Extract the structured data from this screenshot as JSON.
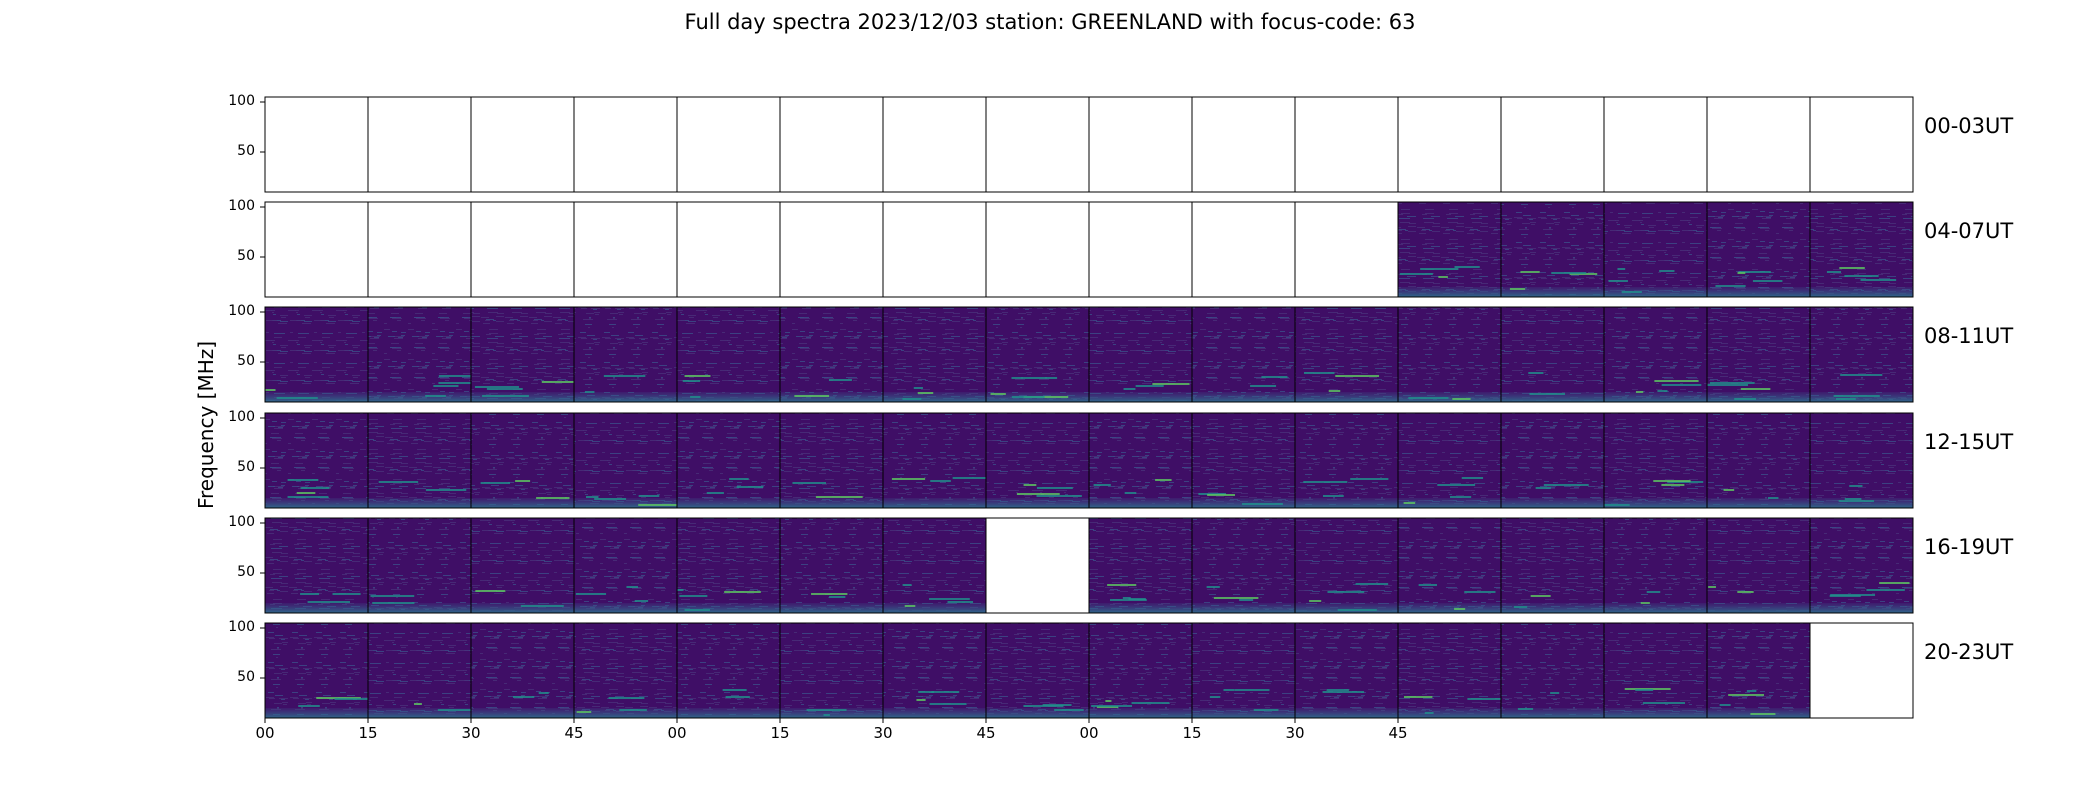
{
  "chart_data": {
    "type": "heatmap",
    "title": "Full day spectra 2023/12/03 station: GREENLAND with focus-code: 63",
    "ylabel": "Frequency [MHz]",
    "y_ticks": [
      "100",
      "50"
    ],
    "x_ticks": [
      "00",
      "15",
      "30",
      "45",
      "00",
      "15",
      "30",
      "45",
      "00",
      "15",
      "30",
      "45"
    ],
    "rows": [
      {
        "label": "00-03UT",
        "panels": [
          "empty",
          "empty",
          "empty",
          "empty",
          "empty",
          "empty",
          "empty",
          "empty",
          "empty",
          "empty",
          "empty",
          "empty",
          "empty",
          "empty",
          "empty",
          "empty"
        ]
      },
      {
        "label": "04-07UT",
        "panels": [
          "empty",
          "empty",
          "empty",
          "empty",
          "empty",
          "empty",
          "empty",
          "empty",
          "empty",
          "empty",
          "empty",
          "data",
          "data",
          "data",
          "data",
          "data"
        ]
      },
      {
        "label": "08-11UT",
        "panels": [
          "data",
          "data",
          "data",
          "data",
          "data",
          "data",
          "data",
          "data",
          "data",
          "data",
          "data",
          "data",
          "data",
          "data",
          "data",
          "data"
        ]
      },
      {
        "label": "12-15UT",
        "panels": [
          "data",
          "data",
          "data",
          "data",
          "data",
          "data",
          "data",
          "data",
          "data",
          "data",
          "data",
          "data",
          "data",
          "data",
          "data",
          "data"
        ]
      },
      {
        "label": "16-19UT",
        "panels": [
          "data",
          "data",
          "data",
          "data",
          "data",
          "data",
          "data",
          "empty",
          "data",
          "data",
          "data",
          "data",
          "data",
          "data",
          "data",
          "data"
        ]
      },
      {
        "label": "20-23UT",
        "panels": [
          "data",
          "data",
          "data",
          "data",
          "data",
          "data",
          "data",
          "data",
          "data",
          "data",
          "data",
          "data",
          "data",
          "data",
          "data",
          "empty"
        ]
      }
    ],
    "colormap": "viridis",
    "colors": {
      "low": "#440154",
      "mid": "#21918c",
      "high": "#fde725"
    }
  }
}
